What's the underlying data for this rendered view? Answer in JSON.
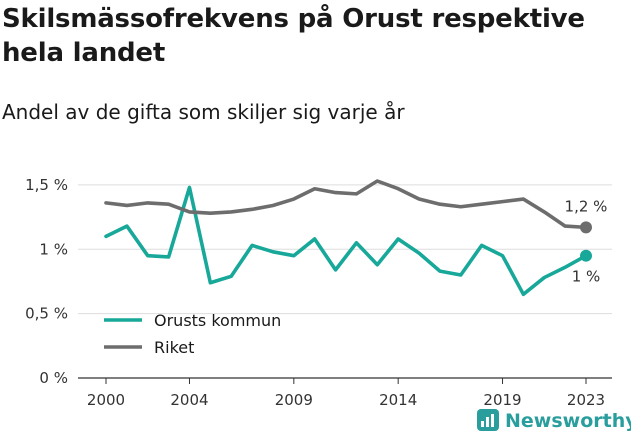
{
  "title": "Skilsmässofrekvens på Orust respektive hela landet",
  "subtitle": "Andel av de gifta som skiljer sig varje år",
  "brand": {
    "name": "Newsworthy",
    "color": "#2a9d9d"
  },
  "colors": {
    "orust": "#17a89a",
    "riket": "#6d6d6d",
    "grid": "#dddddd",
    "axis": "#333333"
  },
  "chart_data": {
    "type": "line",
    "x": [
      2000,
      2001,
      2002,
      2003,
      2004,
      2005,
      2006,
      2007,
      2008,
      2009,
      2010,
      2011,
      2012,
      2013,
      2014,
      2015,
      2016,
      2017,
      2018,
      2019,
      2020,
      2021,
      2022,
      2023
    ],
    "series": [
      {
        "name": "Orusts kommun",
        "color": "#17a89a",
        "values": [
          1.1,
          1.18,
          0.95,
          0.94,
          1.48,
          0.74,
          0.79,
          1.03,
          0.98,
          0.95,
          1.08,
          0.84,
          1.05,
          0.88,
          1.08,
          0.97,
          0.83,
          0.8,
          1.03,
          0.95,
          0.65,
          0.78,
          0.86,
          0.95
        ],
        "end_label": "1 %"
      },
      {
        "name": "Riket",
        "color": "#6d6d6d",
        "values": [
          1.36,
          1.34,
          1.36,
          1.35,
          1.29,
          1.28,
          1.29,
          1.31,
          1.34,
          1.39,
          1.47,
          1.44,
          1.43,
          1.53,
          1.47,
          1.39,
          1.35,
          1.33,
          1.35,
          1.37,
          1.39,
          1.29,
          1.18,
          1.17
        ],
        "end_label": "1,2 %"
      }
    ],
    "y_ticks": [
      {
        "value": 0,
        "label": "0 %"
      },
      {
        "value": 0.5,
        "label": "0,5 %"
      },
      {
        "value": 1,
        "label": "1 %"
      },
      {
        "value": 1.5,
        "label": "1,5 %"
      }
    ],
    "x_ticks": [
      {
        "value": 2000,
        "label": "2000"
      },
      {
        "value": 2004,
        "label": "2004"
      },
      {
        "value": 2009,
        "label": "2009"
      },
      {
        "value": 2014,
        "label": "2014"
      },
      {
        "value": 2019,
        "label": "2019"
      },
      {
        "value": 2023,
        "label": "2023"
      }
    ],
    "ylim": [
      0,
      1.6
    ],
    "xlim": [
      2000,
      2023
    ],
    "grid": true,
    "legend_position": "bottom-left"
  }
}
